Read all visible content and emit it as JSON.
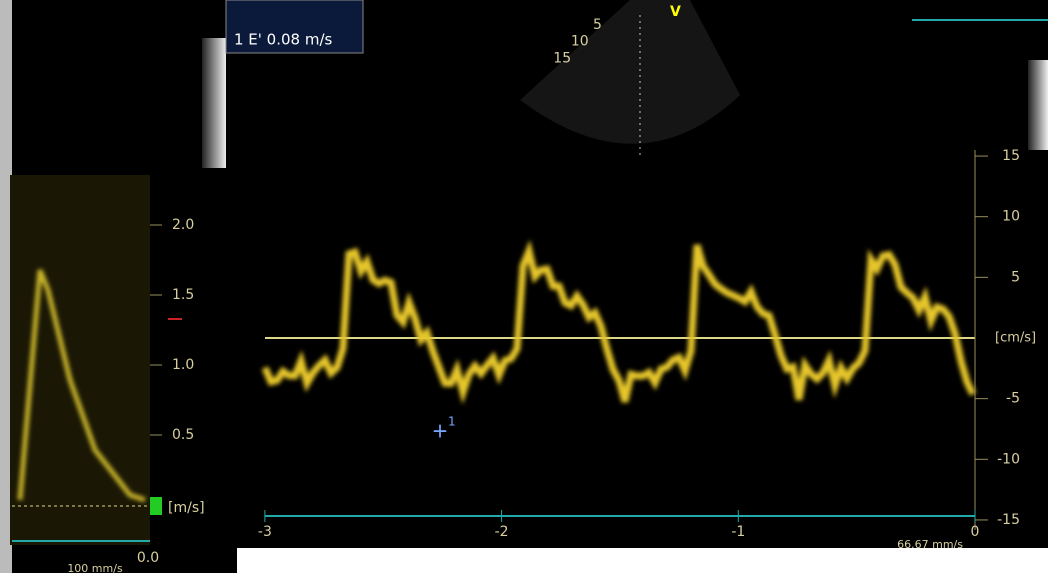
{
  "header": {
    "label": "1 E' 0.08 m/s"
  },
  "sector": {
    "depths": [
      {
        "value": 5,
        "label": "5"
      },
      {
        "value": 10,
        "label": "10"
      },
      {
        "value": 15,
        "label": "15"
      }
    ],
    "marker": "V"
  },
  "left_scale": {
    "ticks": [
      {
        "value": 2,
        "label": "2.0"
      },
      {
        "value": 1.5,
        "label": "1.5"
      },
      {
        "value": 1,
        "label": "1.0"
      },
      {
        "value": 0.5,
        "label": "0.5"
      }
    ],
    "unit": "[m/s]",
    "zero": "0.0",
    "sweep": "100 mm/s"
  },
  "right_scale": {
    "ticks": [
      15,
      10,
      5,
      -5,
      -10,
      -15
    ],
    "unit": "[cm/s]"
  },
  "time_axis": {
    "ticks": [
      -3,
      -2,
      -1,
      0
    ],
    "sweep": "66.67 mm/s"
  },
  "cursor": {
    "label": "1"
  }
}
